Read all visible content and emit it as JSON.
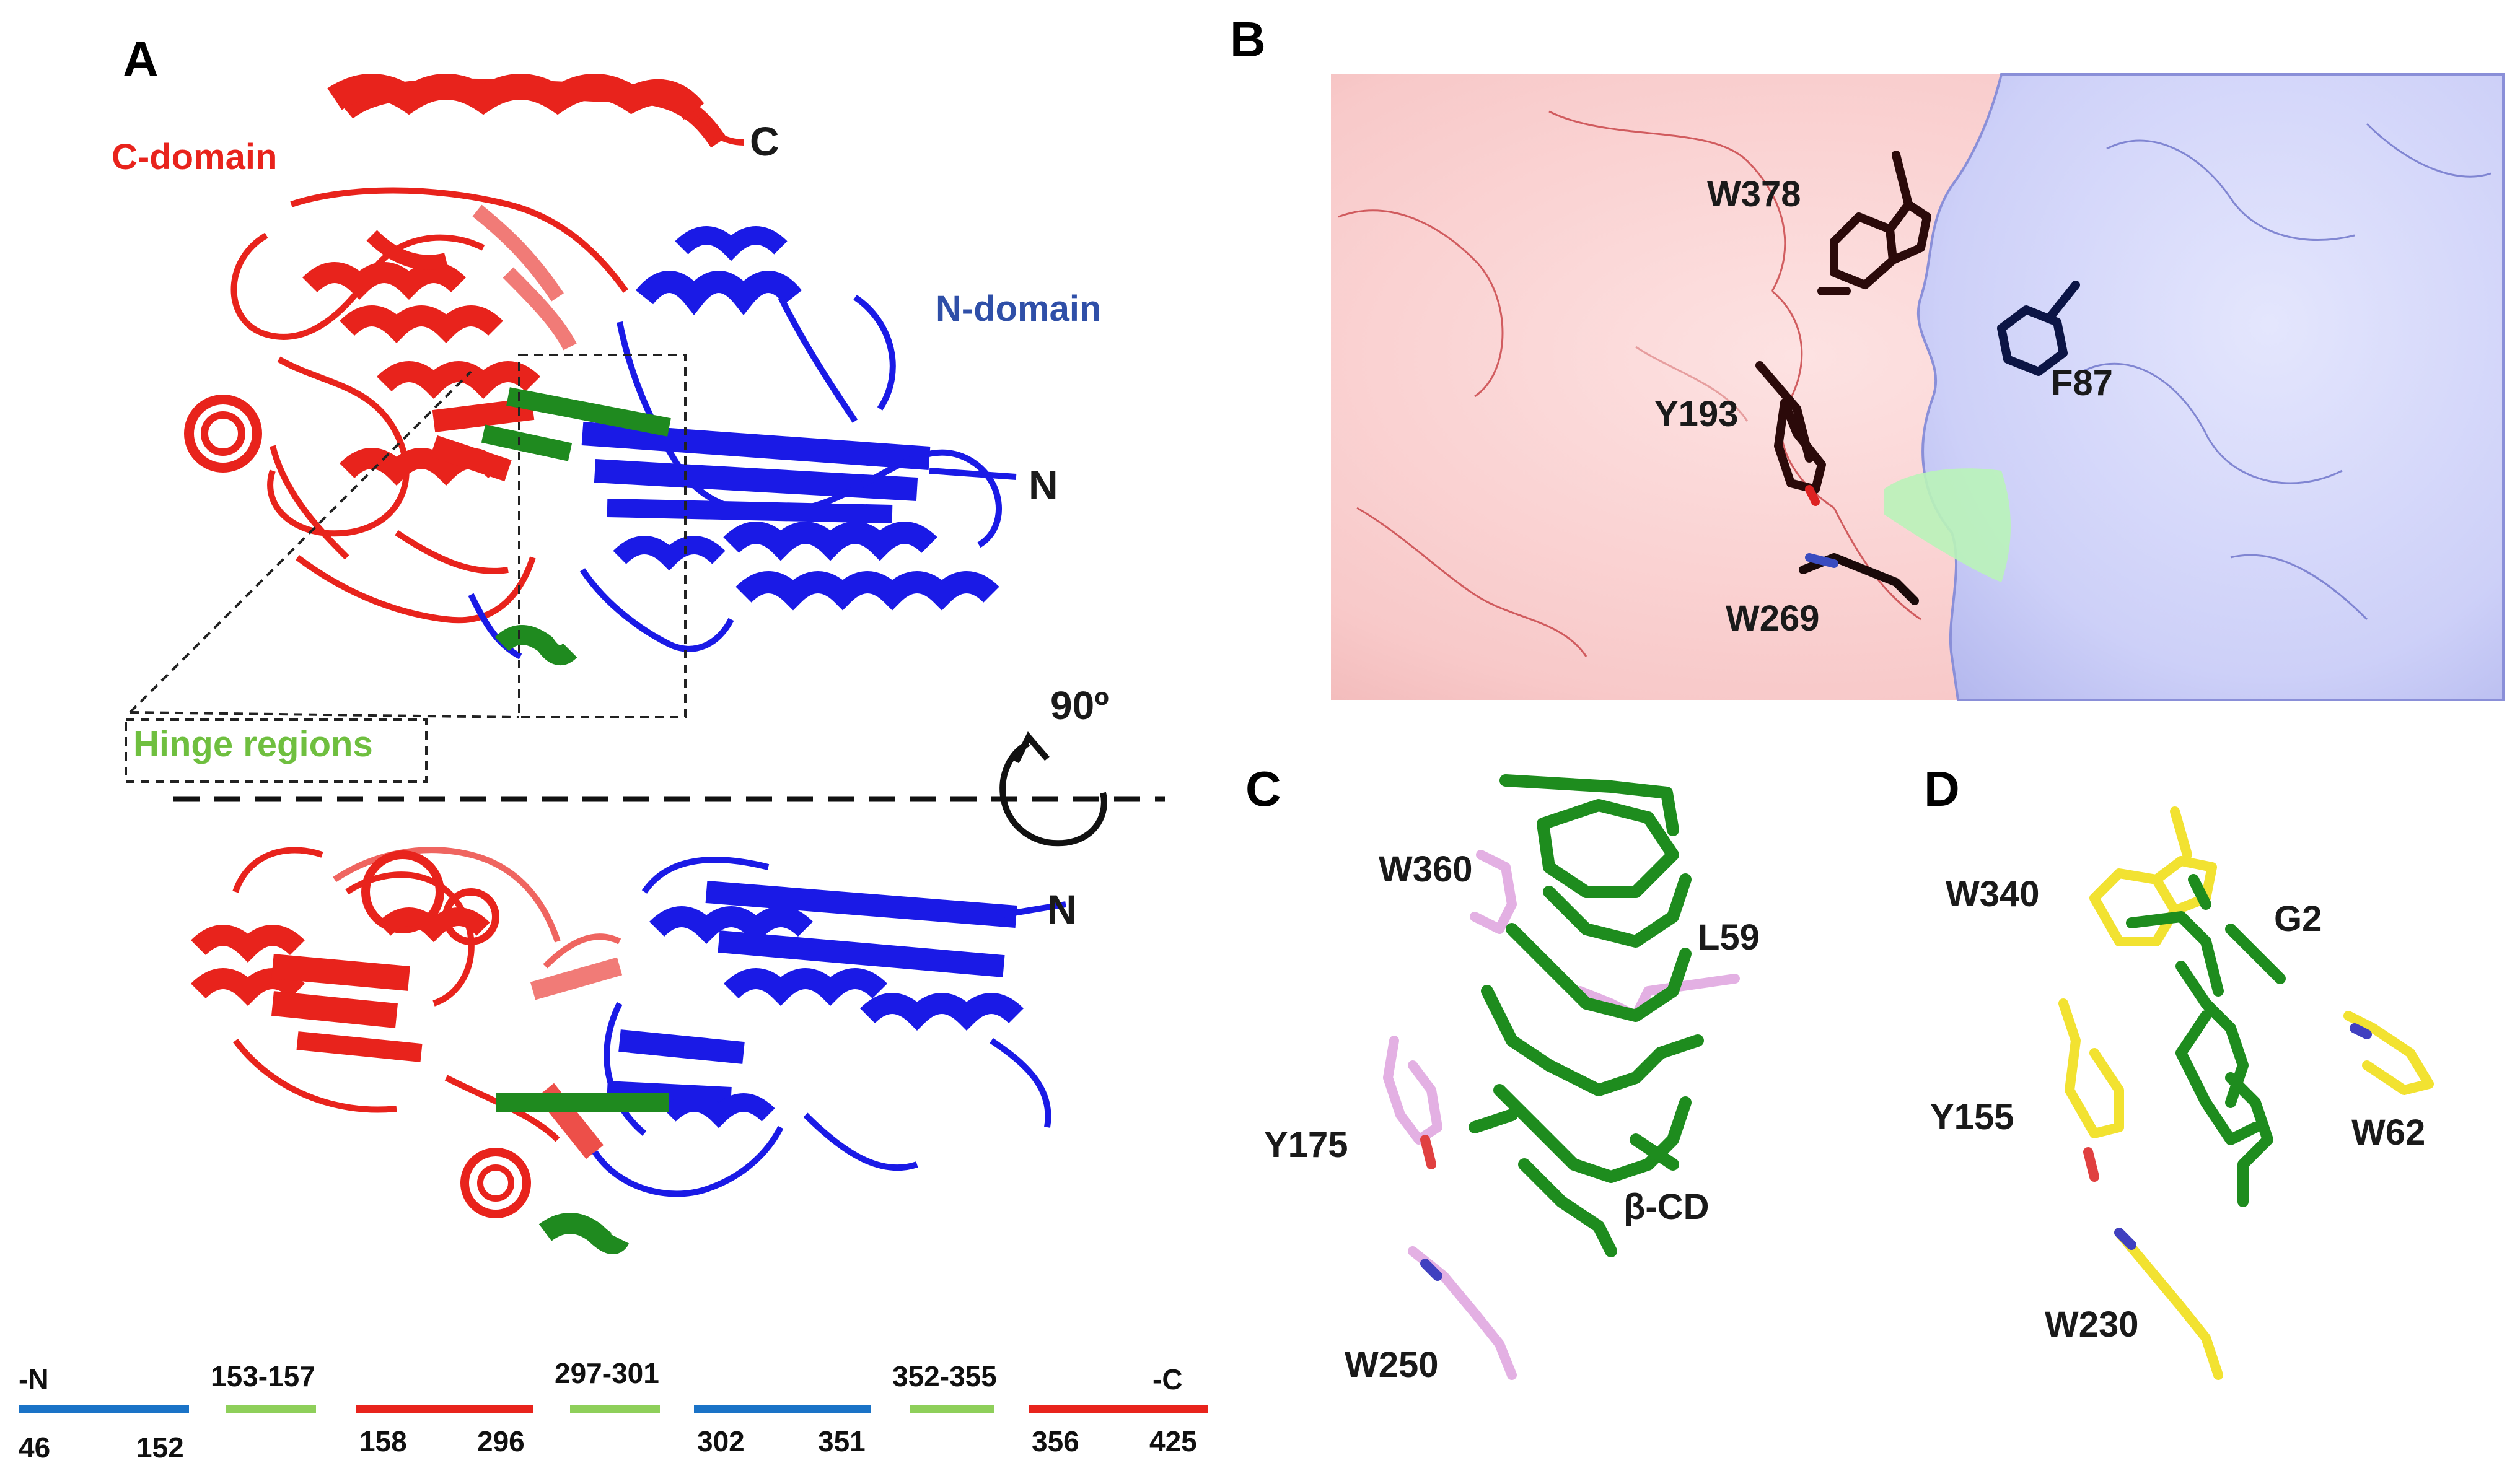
{
  "panels": {
    "a": "A",
    "b": "B",
    "c": "C",
    "d": "D"
  },
  "panel_a": {
    "c_domain": "C-domain",
    "n_domain": "N-domain",
    "c_terminus": "C",
    "n_terminus_top": "N",
    "n_terminus_bottom": "N",
    "hinge": "Hinge regions",
    "rotation": "90º"
  },
  "panel_b": {
    "residues": [
      "W378",
      "F87",
      "Y193",
      "W269"
    ]
  },
  "panel_c": {
    "residues": [
      "W360",
      "L59",
      "Y175",
      "β-CD",
      "W250"
    ]
  },
  "panel_d": {
    "residues": [
      "W340",
      "G2",
      "Y155",
      "W62",
      "W230"
    ]
  },
  "sequence_map": {
    "segments": [
      {
        "range": "-N",
        "start": "46",
        "end": "152",
        "color": "#1a73c7"
      },
      {
        "range": "153-157",
        "start": "",
        "end": "",
        "color": "#8ecf5a"
      },
      {
        "range": "",
        "start": "158",
        "end": "296",
        "color": "#e8231c"
      },
      {
        "range": "297-301",
        "start": "",
        "end": "",
        "color": "#8ecf5a"
      },
      {
        "range": "",
        "start": "302",
        "end": "351",
        "color": "#1a73c7"
      },
      {
        "range": "352-355",
        "start": "",
        "end": "",
        "color": "#8ecf5a"
      },
      {
        "range": "-C",
        "start": "356",
        "end": "425",
        "color": "#e8231c"
      }
    ]
  },
  "colors": {
    "c_domain": "#e8231c",
    "n_domain": "#2233dd",
    "hinge": "#1f8a1f",
    "ligand": "#1e8c1e"
  }
}
